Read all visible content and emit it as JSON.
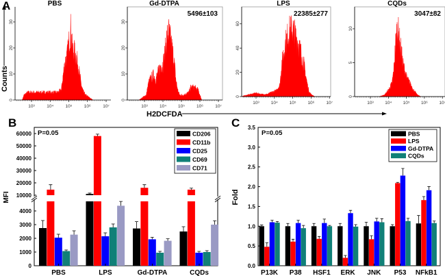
{
  "panel_labels": {
    "a": "A",
    "b": "B",
    "c": "C"
  },
  "colors": {
    "histogram": "#ff0000",
    "CD206": "#000000",
    "CD11b": "#ff0000",
    "CD25": "#0000ff",
    "CD69": "#108078",
    "CD71": "#9a9ac4",
    "PBS": "#000000",
    "LPS": "#ff0000",
    "Gd-DTPA": "#0000ff",
    "CQDs": "#108078"
  },
  "chart_data": [
    {
      "type": "area",
      "panel": "A",
      "ylabel": "Counts",
      "xlabel": "H2DCFDA",
      "x_scale": "log",
      "x_ticks": [
        "10³",
        "10⁴",
        "10⁵",
        "10⁶",
        "10⁷"
      ],
      "histograms": [
        {
          "title": "PBS",
          "value_label": "",
          "y_ticks": [
            "0",
            "10",
            "20",
            "30"
          ],
          "ylim": [
            0,
            38
          ],
          "log_x": [
            2.5,
            2.6,
            2.8,
            3.0,
            3.2,
            3.4,
            3.6,
            3.8,
            4.0,
            4.2,
            4.4,
            4.6,
            4.7,
            4.8,
            4.9,
            5.0,
            5.1,
            5.2,
            5.3,
            5.4,
            5.5,
            5.6,
            5.7,
            5.8,
            5.9,
            6.1,
            6.3
          ],
          "counts": [
            0,
            2,
            3,
            3,
            3,
            3,
            3,
            3,
            3,
            3,
            3,
            4,
            10,
            15,
            17,
            22,
            28,
            20,
            19,
            17,
            14,
            9,
            5,
            3,
            2,
            1,
            0
          ]
        },
        {
          "title": "Gd-DTPA",
          "value_label": "5496±103",
          "y_ticks": [
            "0",
            "10",
            "20",
            "30"
          ],
          "ylim": [
            0,
            38
          ],
          "log_x": [
            2.7,
            2.9,
            3.1,
            3.2,
            3.3,
            3.5,
            3.6,
            3.7,
            3.9,
            4.0,
            4.1,
            4.2,
            4.3,
            4.4,
            4.5,
            4.6,
            4.7,
            4.8,
            4.9,
            5.1,
            5.4,
            5.5,
            5.7,
            5.9,
            6.0,
            6.1
          ],
          "counts": [
            0,
            1,
            2,
            6,
            8,
            10,
            8,
            10,
            14,
            14,
            18,
            24,
            27,
            24,
            20,
            16,
            8,
            4,
            2,
            2,
            3,
            5,
            5,
            4,
            2,
            0
          ]
        },
        {
          "title": "LPS",
          "value_label": "22385±277",
          "y_ticks": [
            "0",
            "20",
            "40",
            "60"
          ],
          "ylim": [
            0,
            72
          ],
          "log_x": [
            2.2,
            2.4,
            2.7,
            3.0,
            3.3,
            3.6,
            3.9,
            4.1,
            4.3,
            4.4,
            4.6,
            4.8,
            5.0,
            5.2,
            5.4,
            5.6,
            5.8,
            5.9,
            6.0,
            6.2
          ],
          "counts": [
            0,
            1,
            2,
            3,
            2,
            2,
            4,
            5,
            10,
            28,
            45,
            55,
            57,
            50,
            40,
            28,
            10,
            4,
            2,
            0
          ]
        },
        {
          "title": "CQDs",
          "value_label": "3047±82",
          "y_ticks": [
            "0",
            "5",
            "10"
          ],
          "ylim": [
            0,
            12
          ],
          "log_x": [
            3.5,
            3.8,
            4.0,
            4.2,
            4.3,
            4.4,
            4.5,
            4.6,
            4.7,
            4.8,
            5.0,
            5.2,
            5.4,
            5.6,
            5.8
          ],
          "counts": [
            0,
            0.3,
            1,
            2,
            4,
            8,
            10.5,
            9,
            7,
            5,
            3,
            2,
            1,
            0.3,
            0
          ]
        }
      ]
    },
    {
      "type": "bar",
      "panel": "B",
      "annotation": "P=0.05",
      "ylabel": "MFI",
      "y_axis_break": [
        4700,
        10000
      ],
      "y_ticks_lower": [
        "0",
        "1000",
        "2000",
        "3000",
        "4000"
      ],
      "y_ticks_upper": [
        "10000",
        "20000",
        "30000",
        "40000",
        "50000",
        "60000"
      ],
      "categories": [
        "PBS",
        "LPS",
        "Gd-DTPA",
        "CQDs"
      ],
      "legend_position": "top-right",
      "series": [
        {
          "name": "CD206",
          "values": [
            2750,
            11000,
            2720,
            2500
          ],
          "errors": [
            550,
            700,
            500,
            350
          ]
        },
        {
          "name": "CD11b",
          "values": [
            14500,
            58000,
            16000,
            14500
          ],
          "errors": [
            4000,
            1500,
            2500,
            1200
          ]
        },
        {
          "name": "CD25",
          "values": [
            2050,
            2150,
            1930,
            950
          ],
          "errors": [
            250,
            250,
            150,
            100
          ]
        },
        {
          "name": "CD69",
          "values": [
            1070,
            2800,
            950,
            1000
          ],
          "errors": [
            80,
            250,
            100,
            100
          ]
        },
        {
          "name": "CD71",
          "values": [
            2270,
            4380,
            1820,
            3000
          ],
          "errors": [
            280,
            550,
            150,
            280
          ]
        }
      ]
    },
    {
      "type": "bar",
      "panel": "C",
      "annotation": "P=0.05",
      "ylabel": "Fold",
      "ylim": [
        0,
        3.5
      ],
      "y_ticks": [
        "0.0",
        "0.5",
        "1.0",
        "1.5",
        "2.0",
        "2.5",
        "3.0",
        "3.5"
      ],
      "categories": [
        "P13K",
        "P38",
        "HSF1",
        "ERK",
        "JNK",
        "P53",
        "NFkB1"
      ],
      "legend_position": "top-right",
      "series": [
        {
          "name": "PBS",
          "values": [
            1.0,
            1.0,
            1.0,
            1.0,
            1.0,
            1.0,
            1.07
          ],
          "errors": [
            0.03,
            0.07,
            0.07,
            0.07,
            0.1,
            0.04,
            0.2
          ]
        },
        {
          "name": "LPS",
          "values": [
            0.48,
            0.61,
            0.68,
            0.2,
            0.67,
            2.09,
            1.66
          ],
          "errors": [
            0.1,
            0.06,
            0.06,
            0.06,
            0.09,
            0.02,
            0.09
          ]
        },
        {
          "name": "Gd-DTPA",
          "values": [
            1.1,
            1.08,
            1.08,
            1.33,
            1.12,
            2.28,
            1.91
          ],
          "errors": [
            0.05,
            0.07,
            0.1,
            0.07,
            0.08,
            0.18,
            0.09
          ]
        },
        {
          "name": "CQDs",
          "values": [
            1.09,
            0.95,
            1.0,
            0.99,
            1.1,
            1.13,
            1.08
          ],
          "errors": [
            0.03,
            0.07,
            0.02,
            0.05,
            0.09,
            0.07,
            0.05
          ]
        }
      ]
    }
  ]
}
